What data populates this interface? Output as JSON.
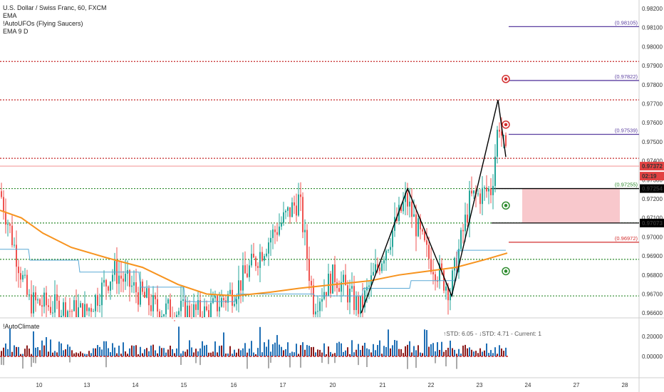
{
  "header": {
    "symbol_line": "U.S. Dollar / Swiss Franc, 60, FXCM",
    "indicators": [
      "EMA",
      "!AutoUFOs (Flying Saucers)",
      "EMA 9 D"
    ]
  },
  "price_axis": {
    "ticks": [
      "0.98200",
      "0.98100",
      "0.98000",
      "0.97900",
      "0.97800",
      "0.97700",
      "0.97600",
      "0.97500",
      "0.97400",
      "0.97300",
      "0.97200",
      "0.97100",
      "0.97000",
      "0.96900",
      "0.96800",
      "0.96700",
      "0.96600"
    ],
    "badges": [
      {
        "label": "0.97372",
        "bg": "#e24343",
        "fg": "#ffffff"
      },
      {
        "label": "02:19",
        "bg": "#e24343",
        "fg": "#ffffff"
      },
      {
        "label": "0.97254",
        "bg": "#000000",
        "fg": "#ffffff"
      },
      {
        "label": "0.97073",
        "bg": "#000000",
        "fg": "#ffffff"
      }
    ]
  },
  "level_labels": [
    {
      "text": "(0.98105)",
      "color": "#5b3fa0"
    },
    {
      "text": "(0.97822)",
      "color": "#5b3fa0"
    },
    {
      "text": "(0.97539)",
      "color": "#5b3fa0"
    },
    {
      "text": "(0.97255)",
      "color": "#2e8b2e"
    },
    {
      "text": "(0.96972)",
      "color": "#d32f2f"
    }
  ],
  "time_axis": [
    "10",
    "13",
    "14",
    "15",
    "16",
    "17",
    "20",
    "21",
    "22",
    "23",
    "24",
    "27",
    "28"
  ],
  "lower_panel": {
    "name": "!AutoClimate",
    "stats": "↑STD: 6.05 - ↓STD: 4.71 - Current: 1",
    "ticks": [
      "0.20000",
      "0.00000"
    ]
  },
  "colors": {
    "up": "#26a69a",
    "down": "#ef5350",
    "ema": "#f7931e",
    "ema9d": "#5aa9d6",
    "green_dotted": "#2e8b2e",
    "red_dotted": "#c62828",
    "purple": "#5b3fa0",
    "zone": "#f8c8cc"
  }
}
